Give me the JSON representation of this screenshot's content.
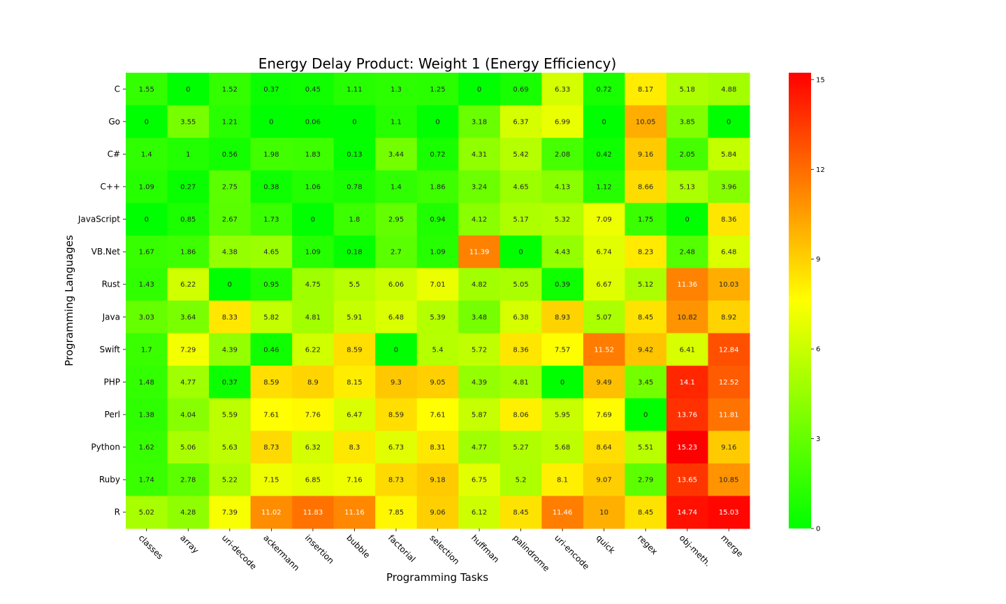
{
  "chart_data": {
    "type": "heatmap",
    "title": "Energy Delay Product: Weight 1 (Energy Efficiency)",
    "xlabel": "Programming Tasks",
    "ylabel": "Programming Languages",
    "x_categories": [
      "classes",
      "array",
      "uri-decode",
      "ackermann",
      "insertion",
      "bubble",
      "factorial",
      "selection",
      "huffman",
      "palindrome",
      "uri-encode",
      "quick",
      "regex",
      "obj-meth.",
      "merge"
    ],
    "y_categories": [
      "C",
      "Go",
      "C#",
      "C++",
      "JavaScript",
      "VB.Net",
      "Rust",
      "Java",
      "Swift",
      "PHP",
      "Perl",
      "Python",
      "Ruby",
      "R"
    ],
    "values": [
      [
        1.55,
        0,
        1.52,
        0.37,
        0.45,
        1.11,
        1.3,
        1.25,
        0,
        0.69,
        6.33,
        0.72,
        8.17,
        5.18,
        4.88
      ],
      [
        0,
        3.55,
        1.21,
        0,
        0.06,
        0,
        1.1,
        0,
        3.18,
        6.37,
        6.99,
        0,
        10.05,
        3.85,
        0
      ],
      [
        1.4,
        1,
        0.56,
        1.98,
        1.83,
        0.13,
        3.44,
        0.72,
        4.31,
        5.42,
        2.08,
        0.42,
        9.16,
        2.05,
        5.84
      ],
      [
        1.09,
        0.27,
        2.75,
        0.38,
        1.06,
        0.78,
        1.4,
        1.86,
        3.24,
        4.65,
        4.13,
        1.12,
        8.66,
        5.13,
        3.96
      ],
      [
        0,
        0.85,
        2.67,
        1.73,
        0,
        1.8,
        2.95,
        0.94,
        4.12,
        5.17,
        5.32,
        7.09,
        1.75,
        0,
        8.36
      ],
      [
        1.67,
        1.86,
        4.38,
        4.65,
        1.09,
        0.18,
        2.7,
        1.09,
        11.39,
        0,
        4.43,
        6.74,
        8.23,
        2.48,
        6.48
      ],
      [
        1.43,
        6.22,
        0,
        0.95,
        4.75,
        5.5,
        6.06,
        7.01,
        4.82,
        5.05,
        0.39,
        6.67,
        5.12,
        11.36,
        10.03
      ],
      [
        3.03,
        3.64,
        8.33,
        5.82,
        4.81,
        5.91,
        6.48,
        5.39,
        3.48,
        6.38,
        8.93,
        5.07,
        8.45,
        10.82,
        8.92
      ],
      [
        1.7,
        7.29,
        4.39,
        0.46,
        6.22,
        8.59,
        0,
        5.4,
        5.72,
        8.36,
        7.57,
        11.52,
        9.42,
        6.41,
        12.84
      ],
      [
        1.48,
        4.77,
        0.37,
        8.59,
        8.9,
        8.15,
        9.3,
        9.05,
        4.39,
        4.81,
        0,
        9.49,
        3.45,
        14.1,
        12.52
      ],
      [
        1.38,
        4.04,
        5.59,
        7.61,
        7.76,
        6.47,
        8.59,
        7.61,
        5.87,
        8.06,
        5.95,
        7.69,
        0,
        13.76,
        11.81
      ],
      [
        1.62,
        5.06,
        5.63,
        8.73,
        6.32,
        8.3,
        6.73,
        8.31,
        4.77,
        5.27,
        5.68,
        8.64,
        5.51,
        15.23,
        9.16
      ],
      [
        1.74,
        2.78,
        5.22,
        7.15,
        6.85,
        7.16,
        8.73,
        9.18,
        6.75,
        5.2,
        8.1,
        9.07,
        2.79,
        13.65,
        10.85
      ],
      [
        5.02,
        4.28,
        7.39,
        11.02,
        11.83,
        11.16,
        7.85,
        9.06,
        6.12,
        8.45,
        11.46,
        10,
        8.45,
        14.74,
        15.03
      ]
    ],
    "colormap": [
      "#00ff00",
      "#ffff00",
      "#ff0000"
    ],
    "vmin": 0,
    "vmax": 15.23,
    "colorbar_ticks": [
      0,
      3,
      6,
      9,
      12,
      15
    ],
    "annotation_dark_color": "#262626",
    "annotation_light_color": "#ffffff"
  }
}
